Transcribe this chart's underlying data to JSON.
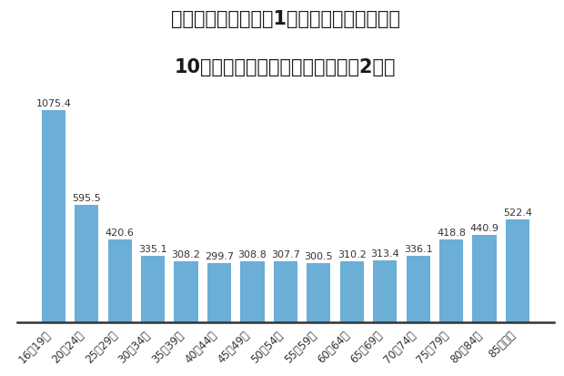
{
  "title_line1": "原付以上運転者（第1当事者）の免許保有者",
  "title_line2": "10万人当たり交通事故件数（令和2年）",
  "categories": [
    "16〜19歳",
    "20〜24歳",
    "25〜29歳",
    "30〜34歳",
    "35〜39歳",
    "40〜44歳",
    "45〜49歳",
    "50〜54歳",
    "55〜59歳",
    "60〜64歳",
    "65〜69歳",
    "70〜74歳",
    "75〜79歳",
    "80〜84歳",
    "85歳以上"
  ],
  "values": [
    1075.4,
    595.5,
    420.6,
    335.1,
    308.2,
    299.7,
    308.8,
    307.7,
    300.5,
    310.2,
    313.4,
    336.1,
    418.8,
    440.9,
    522.4
  ],
  "bar_color": "#6baed6",
  "background_color": "#ffffff",
  "ylim": [
    0,
    1200
  ],
  "title_fontsize": 15,
  "label_fontsize": 8,
  "tick_fontsize": 8.5
}
